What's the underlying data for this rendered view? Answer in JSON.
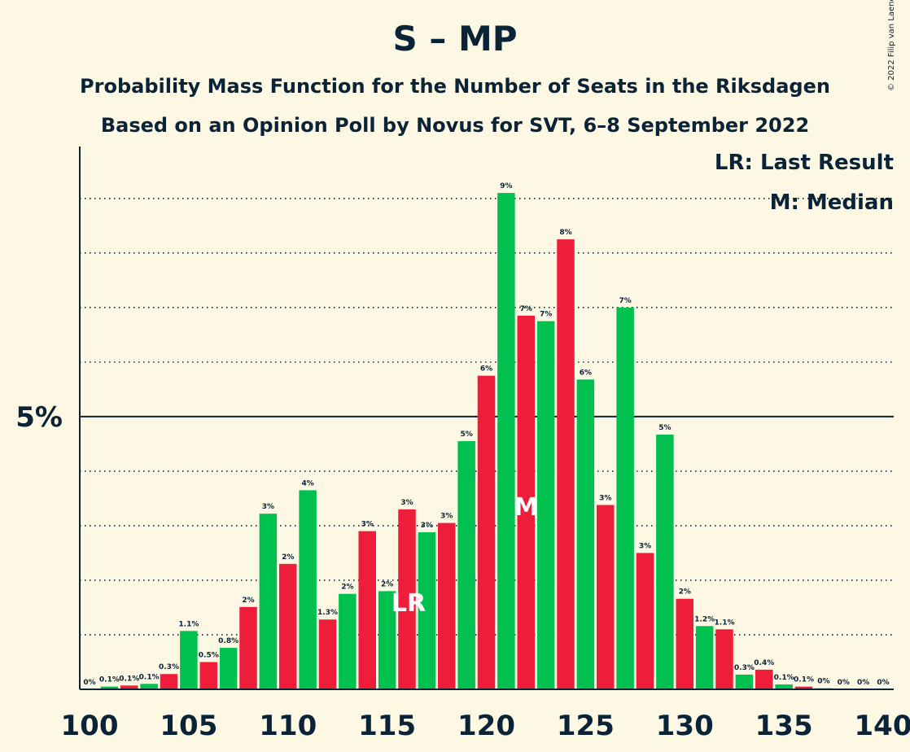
{
  "title": "S – MP",
  "subtitle_1": "Probability Mass Function for the Number of Seats in the Riksdagen",
  "subtitle_2": "Based on an Opinion Poll by Novus for SVT, 6–8 September 2022",
  "copyright": "© 2022 Filip van Laenen",
  "legend": {
    "last_result": "LR: Last Result",
    "median": "M: Median"
  },
  "colors": {
    "background": "#fdf8e4",
    "green": "#00c050",
    "red": "#ee1d3a",
    "text": "#0b2336"
  },
  "chart_data": {
    "type": "bar",
    "xlabel": "",
    "ylabel": "",
    "y_unit": "%",
    "ylim": [
      0,
      10
    ],
    "y_tick_labels": [
      {
        "value": 5,
        "label": "5%"
      }
    ],
    "x_ticks": [
      100,
      105,
      110,
      115,
      120,
      125,
      130,
      135,
      140
    ],
    "x_range": [
      100,
      140
    ],
    "last_result_seat": 116,
    "last_result_label": "LR",
    "median_seat": 122,
    "median_label": "M",
    "bars": [
      {
        "seat": 100,
        "value": 0,
        "label": "0%",
        "color": "green"
      },
      {
        "seat": 101,
        "value": 0.05,
        "label": "0.1%",
        "color": "green"
      },
      {
        "seat": 102,
        "value": 0.07,
        "label": "0.1%",
        "color": "red"
      },
      {
        "seat": 103,
        "value": 0.1,
        "label": "0.1%",
        "color": "green"
      },
      {
        "seat": 104,
        "value": 0.28,
        "label": "0.3%",
        "color": "red"
      },
      {
        "seat": 105,
        "value": 1.07,
        "label": "1.1%",
        "color": "green"
      },
      {
        "seat": 106,
        "value": 0.5,
        "label": "0.5%",
        "color": "red"
      },
      {
        "seat": 107,
        "value": 0.76,
        "label": "0.8%",
        "color": "green"
      },
      {
        "seat": 108,
        "value": 1.51,
        "label": "2%",
        "color": "red"
      },
      {
        "seat": 109,
        "value": 3.22,
        "label": "3%",
        "color": "green"
      },
      {
        "seat": 110,
        "value": 2.3,
        "label": "2%",
        "color": "red"
      },
      {
        "seat": 111,
        "value": 3.65,
        "label": "4%",
        "color": "green"
      },
      {
        "seat": 112,
        "value": 1.28,
        "label": "1.3%",
        "color": "red"
      },
      {
        "seat": 113,
        "value": 1.75,
        "label": "2%",
        "color": "green"
      },
      {
        "seat": 114,
        "value": 2.9,
        "label": "3%",
        "color": "red"
      },
      {
        "seat": 115,
        "value": 1.8,
        "label": "2%",
        "color": "green"
      },
      {
        "seat": 116,
        "value": 3.3,
        "label": "3%",
        "color": "red"
      },
      {
        "seat": 117,
        "value": 2.88,
        "label": "3%",
        "color": "green"
      },
      {
        "seat": 118,
        "value": 3.05,
        "label": "3%",
        "color": "red"
      },
      {
        "seat": 119,
        "value": 4.55,
        "label": "5%",
        "color": "green"
      },
      {
        "seat": 120,
        "value": 5.75,
        "label": "6%",
        "color": "red"
      },
      {
        "seat": 121,
        "value": 9.1,
        "label": "9%",
        "color": "green"
      },
      {
        "seat": 122,
        "value": 6.85,
        "label": "7%",
        "color": "red"
      },
      {
        "seat": 123,
        "value": 6.75,
        "label": "7%",
        "color": "green"
      },
      {
        "seat": 124,
        "value": 8.25,
        "label": "8%",
        "color": "red"
      },
      {
        "seat": 125,
        "value": 5.68,
        "label": "6%",
        "color": "green"
      },
      {
        "seat": 126,
        "value": 3.38,
        "label": "3%",
        "color": "red"
      },
      {
        "seat": 127,
        "value": 7.0,
        "label": "7%",
        "color": "green"
      },
      {
        "seat": 128,
        "value": 2.5,
        "label": "3%",
        "color": "red"
      },
      {
        "seat": 129,
        "value": 4.67,
        "label": "5%",
        "color": "green"
      },
      {
        "seat": 130,
        "value": 1.66,
        "label": "2%",
        "color": "red"
      },
      {
        "seat": 131,
        "value": 1.16,
        "label": "1.2%",
        "color": "green"
      },
      {
        "seat": 132,
        "value": 1.1,
        "label": "1.1%",
        "color": "red"
      },
      {
        "seat": 133,
        "value": 0.27,
        "label": "0.3%",
        "color": "green"
      },
      {
        "seat": 134,
        "value": 0.36,
        "label": "0.4%",
        "color": "red"
      },
      {
        "seat": 135,
        "value": 0.09,
        "label": "0.1%",
        "color": "green"
      },
      {
        "seat": 136,
        "value": 0.05,
        "label": "0.1%",
        "color": "red"
      },
      {
        "seat": 137,
        "value": 0.02,
        "label": "0%",
        "color": "green"
      },
      {
        "seat": 138,
        "value": 0,
        "label": "0%",
        "color": "red"
      },
      {
        "seat": 139,
        "value": 0,
        "label": "0%",
        "color": "green"
      },
      {
        "seat": 140,
        "value": 0,
        "label": "0%",
        "color": "red"
      }
    ]
  }
}
